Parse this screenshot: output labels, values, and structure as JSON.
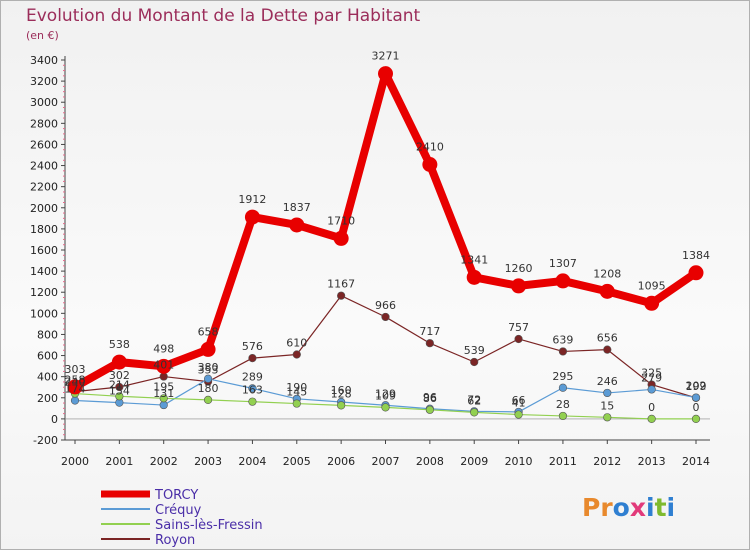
{
  "chart_data": {
    "type": "line",
    "title": "Evolution du Montant de la Dette par Habitant",
    "subtitle": "(en €)",
    "x": [
      "2000",
      "2001",
      "2002",
      "2003",
      "2004",
      "2005",
      "2006",
      "2007",
      "2008",
      "2009",
      "2010",
      "2011",
      "2012",
      "2013",
      "2014"
    ],
    "ylim": [
      -200,
      3400
    ],
    "yticks": [
      -200,
      0,
      200,
      400,
      600,
      800,
      1000,
      1200,
      1400,
      1600,
      1800,
      2000,
      2200,
      2400,
      2600,
      2800,
      3000,
      3200,
      3400
    ],
    "grid": false,
    "legend_position": "bottom-left",
    "series": [
      {
        "name": "TORCY",
        "color": "#e80000",
        "labels_shown": true,
        "values": [
          303,
          538,
          498,
          658,
          1912,
          1837,
          1710,
          3271,
          2410,
          1341,
          1260,
          1307,
          1208,
          1095,
          1384
        ]
      },
      {
        "name": "Créquy",
        "color": "#5b9bd5",
        "labels_shown": true,
        "values": [
          174,
          154,
          131,
          380,
          289,
          190,
          160,
          129,
          96,
          72,
          66,
          295,
          246,
          279,
          202
        ]
      },
      {
        "name": "Sains-lès-Fressin",
        "color": "#92d050",
        "labels_shown": true,
        "values": [
          240,
          214,
          195,
          180,
          163,
          145,
          128,
          109,
          86,
          62,
          41,
          28,
          15,
          0,
          0
        ]
      },
      {
        "name": "Royon",
        "color": "#7b2525",
        "labels_shown": true,
        "values": [
          258,
          302,
          401,
          353,
          576,
          610,
          1167,
          966,
          717,
          539,
          757,
          639,
          656,
          325,
          199
        ]
      }
    ]
  },
  "branding": {
    "logo_text": "Proxiti"
  }
}
